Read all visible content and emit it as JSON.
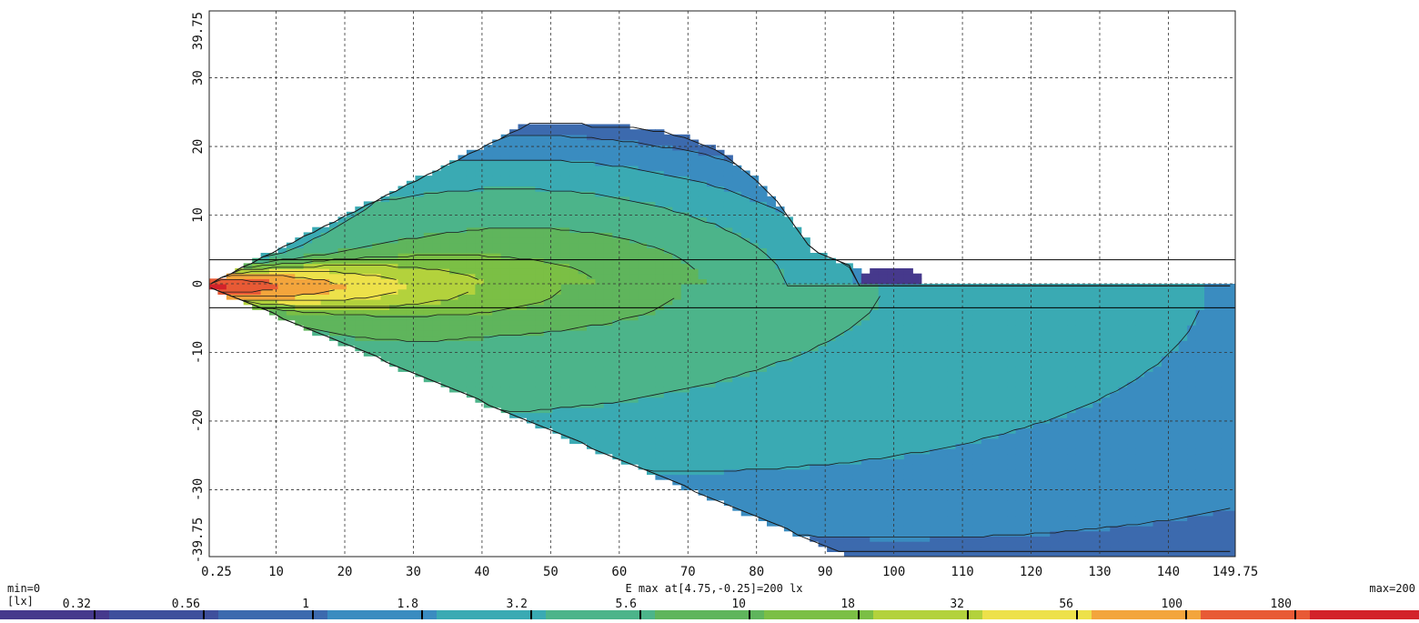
{
  "chart_data": {
    "type": "heatmap",
    "title": "",
    "xlabel": "",
    "ylabel": "",
    "xlim": [
      0.25,
      149.75
    ],
    "ylim": [
      -39.75,
      39.75
    ],
    "x_ticks": [
      0.25,
      10,
      20,
      30,
      40,
      50,
      60,
      70,
      80,
      90,
      100,
      110,
      120,
      130,
      140,
      149.75
    ],
    "y_ticks": [
      -39.75,
      -30,
      -20,
      -10,
      0,
      10,
      20,
      30,
      39.75
    ],
    "x_tick_labels": [
      "0.25",
      "10",
      "20",
      "30",
      "40",
      "50",
      "60",
      "70",
      "80",
      "90",
      "100",
      "110",
      "120",
      "130",
      "140",
      "149.75"
    ],
    "y_tick_labels": [
      "-39.75",
      "-30",
      "-20",
      "-10",
      "0",
      "10",
      "20",
      "30",
      "39.75"
    ],
    "grid": true,
    "max_annotation": "E max at[4.75,-0.25]=200 lx",
    "max_location": [
      4.75,
      -0.25
    ],
    "max_value": 200,
    "min_value": 0,
    "reference_lines_y": [
      3.5,
      -3.5
    ],
    "colorbar": {
      "min_label": "min=0",
      "max_label": "max=200",
      "unit_label": "[lx]",
      "levels": [
        0.32,
        0.56,
        1,
        1.8,
        3.2,
        5.6,
        10,
        18,
        32,
        56,
        100,
        180
      ],
      "level_labels": [
        "0.32",
        "0.56",
        "1",
        "1.8",
        "3.2",
        "5.6",
        "10",
        "18",
        "32",
        "56",
        "100",
        "180"
      ],
      "colors": [
        "#46398c",
        "#3e4f9c",
        "#3c6aae",
        "#3a8cc0",
        "#3aaab3",
        "#4cb48a",
        "#5fb55c",
        "#7bbf45",
        "#b3d23c",
        "#ede14a",
        "#f3a53c",
        "#e85a35",
        "#d3222a"
      ]
    },
    "contour_levels": [
      0.32,
      0.56,
      1,
      1.8,
      3.2,
      5.6,
      10,
      18,
      32,
      56,
      100
    ]
  }
}
